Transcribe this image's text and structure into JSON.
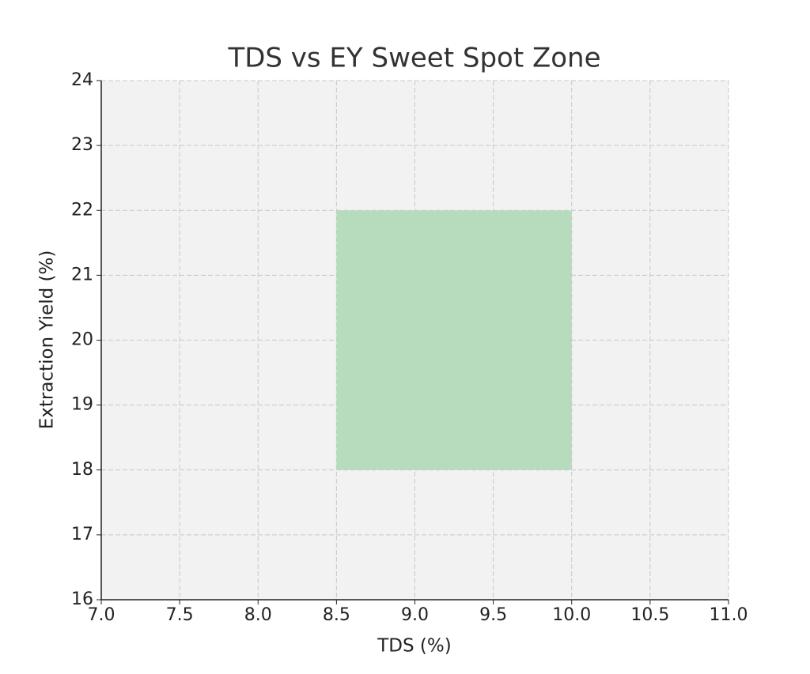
{
  "chart_data": {
    "type": "zone",
    "title": "TDS vs EY Sweet Spot Zone",
    "x_label": "TDS (%)",
    "y_label": "Extraction Yield (%)",
    "zones": [
      {
        "x": [
          8.5,
          10.0
        ],
        "y": [
          18,
          22
        ],
        "color": "#b3dab9"
      }
    ],
    "xlim": [
      7.0,
      11.0
    ],
    "xticks": [
      {
        "value": 7.0,
        "label": "7.0"
      },
      7.5,
      {
        "value": 8.0,
        "label": "8.0"
      },
      8.5,
      {
        "value": 9.0,
        "label": "9.0"
      },
      9.5,
      {
        "value": 10.0,
        "label": "10.0"
      },
      10.5,
      {
        "value": 11.0,
        "label": "11.0"
      }
    ],
    "ylim": [
      16,
      24
    ],
    "yticks": [
      16,
      17,
      18,
      19,
      20,
      21,
      22,
      23,
      24
    ],
    "grid": true
  }
}
